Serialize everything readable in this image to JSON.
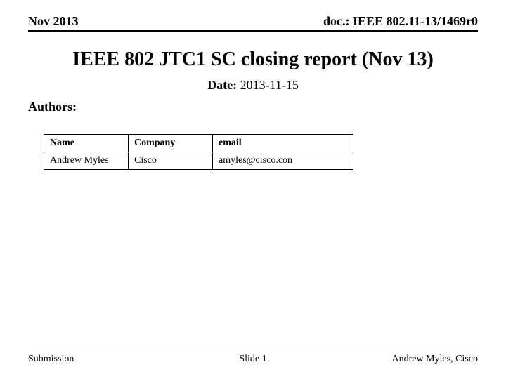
{
  "header": {
    "left": "Nov 2013",
    "right": "doc.: IEEE 802.11-13/1469r0"
  },
  "title": "IEEE 802 JTC1 SC closing report (Nov 13)",
  "date": {
    "label": "Date:",
    "value": " 2013-11-15"
  },
  "authors_label": "Authors:",
  "table": {
    "columns": [
      "Name",
      "Company",
      "email"
    ],
    "rows": [
      [
        "Andrew Myles",
        "Cisco",
        "amyles@cisco.con"
      ]
    ]
  },
  "footer": {
    "left": "Submission",
    "center": "Slide 1",
    "right": "Andrew Myles, Cisco"
  },
  "style": {
    "background_color": "#ffffff",
    "text_color": "#000000",
    "border_color": "#000000",
    "title_fontsize": 28,
    "header_fontsize": 18,
    "body_fontsize": 18,
    "table_fontsize": 14,
    "footer_fontsize": 14
  }
}
